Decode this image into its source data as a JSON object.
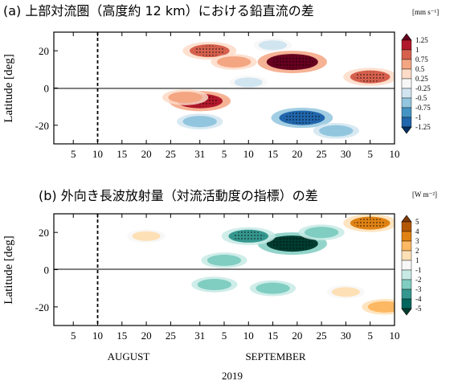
{
  "chart_data": [
    {
      "type": "heatmap",
      "title": "(a) 上部対流圏（高度約 12 km）における鉛直流の差",
      "ylabel": "Latitude [deg]",
      "units": "[mm s⁻¹]",
      "ylim": [
        -30,
        30
      ],
      "yticks": [
        20,
        0,
        -20
      ],
      "xticks": [
        "5",
        "10",
        "15",
        "20",
        "25",
        "31",
        "5",
        "10",
        "15",
        "20",
        "25",
        "30",
        "5",
        "10"
      ],
      "xrange_days": [
        "2019-08-01",
        "2019-10-10"
      ],
      "dashed_line_date": "2019-08-10",
      "colorbar_labels": [
        "1.25",
        "1",
        "0.75",
        "0.5",
        "0.25",
        "-0.25",
        "-0.5",
        "-0.75",
        "-1",
        "-1.25"
      ],
      "colorbar_colors": [
        "#67001f",
        "#b2182b",
        "#d6604d",
        "#f4a582",
        "#fddbc7",
        "#f7f7f7",
        "#d1e5f0",
        "#92c5de",
        "#4393c3",
        "#2166ac",
        "#053061"
      ],
      "features": [
        {
          "date": "2019-09-19",
          "lat": 14,
          "value": 1.25,
          "note": "positive"
        },
        {
          "date": "2019-09-02",
          "lat": 20,
          "value": 0.75
        },
        {
          "date": "2019-09-07",
          "lat": 14,
          "value": 0.5
        },
        {
          "date": "2019-10-05",
          "lat": 6,
          "value": 0.75
        },
        {
          "date": "2019-08-31",
          "lat": -7,
          "value": 1.0
        },
        {
          "date": "2019-08-28",
          "lat": -5,
          "value": 0.5
        },
        {
          "date": "2019-09-21",
          "lat": -16,
          "value": -1.0
        },
        {
          "date": "2019-08-31",
          "lat": -18,
          "value": -0.5
        },
        {
          "date": "2019-09-15",
          "lat": 23,
          "value": -0.25
        },
        {
          "date": "2019-09-28",
          "lat": -23,
          "value": -0.5
        },
        {
          "date": "2019-09-10",
          "lat": 3,
          "value": -0.25
        }
      ]
    },
    {
      "type": "heatmap",
      "title": "(b) 外向き長波放射量（対流活動度の指標）の差",
      "ylabel": "Latitude [deg]",
      "units": "[W m⁻²]",
      "ylim": [
        -30,
        30
      ],
      "yticks": [
        20,
        0,
        -20
      ],
      "xticks": [
        "5",
        "10",
        "15",
        "20",
        "25",
        "31",
        "5",
        "10",
        "15",
        "20",
        "25",
        "30",
        "5",
        "10"
      ],
      "xrange_days": [
        "2019-08-01",
        "2019-10-10"
      ],
      "dashed_line_date": "2019-08-10",
      "colorbar_labels": [
        "5",
        "4",
        "3",
        "2",
        "1",
        "-1",
        "-2",
        "-3",
        "-4",
        "-5"
      ],
      "colorbar_colors": [
        "#7f3b08",
        "#b35806",
        "#e08214",
        "#fdb863",
        "#fee0b6",
        "#f7f7f7",
        "#c7eae5",
        "#80cdc1",
        "#35978f",
        "#01665e",
        "#003c30"
      ],
      "features": [
        {
          "date": "2019-09-19",
          "lat": 14,
          "value": -5
        },
        {
          "date": "2019-09-10",
          "lat": 18,
          "value": -3
        },
        {
          "date": "2019-09-25",
          "lat": 20,
          "value": -2
        },
        {
          "date": "2019-09-05",
          "lat": 5,
          "value": -2
        },
        {
          "date": "2019-09-03",
          "lat": -8,
          "value": -2
        },
        {
          "date": "2019-09-15",
          "lat": -10,
          "value": -2
        },
        {
          "date": "2019-10-05",
          "lat": 25,
          "value": 3
        },
        {
          "date": "2019-09-30",
          "lat": -12,
          "value": 1
        },
        {
          "date": "2019-10-08",
          "lat": -20,
          "value": 2
        },
        {
          "date": "2019-08-20",
          "lat": 18,
          "value": 1
        }
      ]
    }
  ],
  "xaxis": {
    "months": [
      "AUGUST",
      "SEPTEMBER"
    ],
    "year": "2019"
  }
}
